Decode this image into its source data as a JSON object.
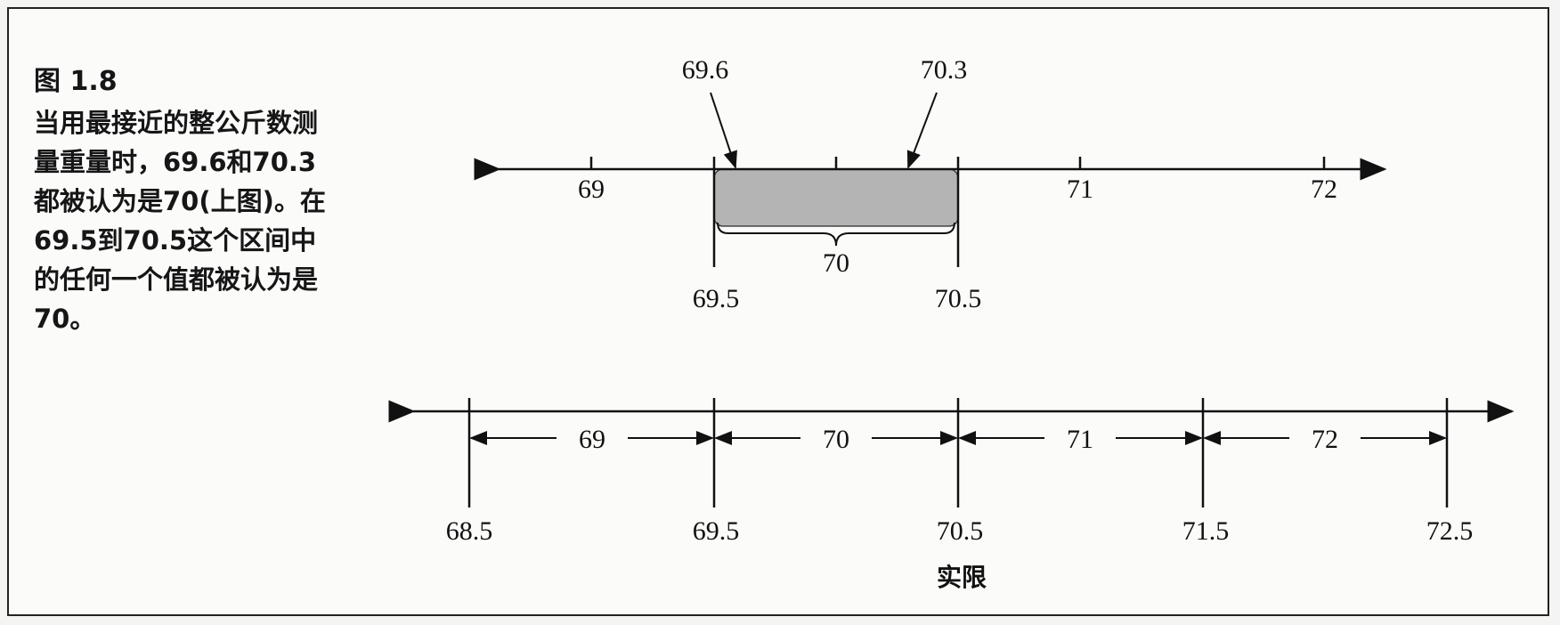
{
  "figure": {
    "number": "图 1.8",
    "caption": "当用最接近的整公斤数测量重量时，69.6和70.3都被认为是70(上图)。在69.5到70.5这个区间中的任何一个值都被认为是70。"
  },
  "top_diagram": {
    "axis_ticks": [
      "69",
      "70",
      "71",
      "72"
    ],
    "arrow_labels": [
      "69.6",
      "70.3"
    ],
    "interval_label": "70",
    "limits": [
      "69.5",
      "70.5"
    ],
    "shaded_color": "#b4b4b4"
  },
  "bottom_diagram": {
    "intervals": [
      "69",
      "70",
      "71",
      "72"
    ],
    "bounds": [
      "68.5",
      "69.5",
      "70.5",
      "71.5",
      "72.5"
    ],
    "axis_title": "实限"
  }
}
